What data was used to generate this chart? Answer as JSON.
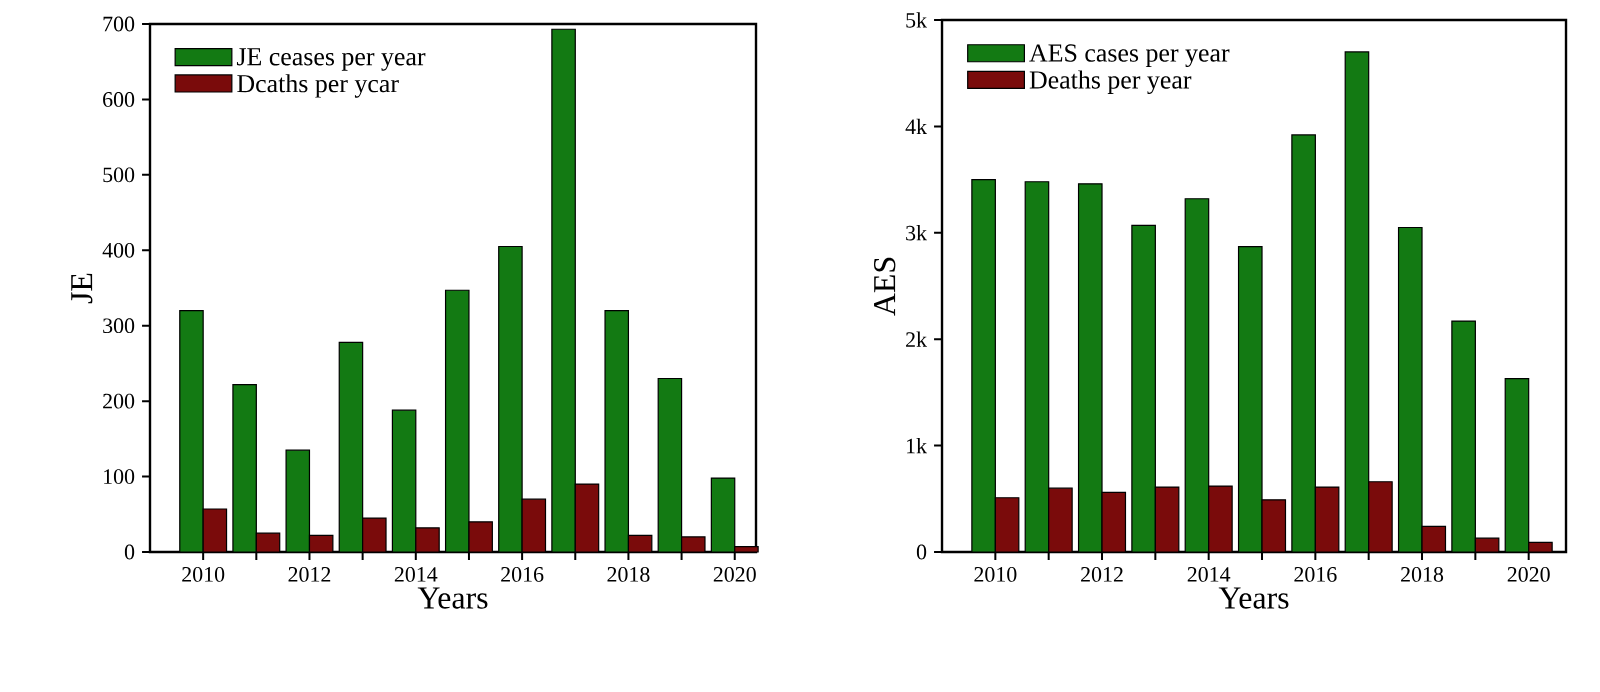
{
  "chart_data": [
    {
      "type": "bar",
      "xlabel": "Years",
      "ylabel": "JE",
      "legend": "top left",
      "x": [
        2010,
        2011,
        2012,
        2013,
        2014,
        2015,
        2016,
        2017,
        2018,
        2019,
        2020
      ],
      "series": [
        {
          "name": "JE ceases per year",
          "color": "#137a13",
          "values": [
            320,
            222,
            135,
            278,
            188,
            347,
            405,
            693,
            320,
            230,
            98
          ]
        },
        {
          "name": "Dcaths per ycar",
          "color": "#7a0b0b",
          "values": [
            57,
            25,
            22,
            45,
            32,
            40,
            70,
            90,
            22,
            20,
            7
          ]
        }
      ],
      "xlim": [
        2009,
        2020.4
      ],
      "ylim": [
        0,
        700
      ],
      "xticks": [
        2010,
        {
          "value": 2011,
          "label": null
        },
        2012,
        {
          "value": 2013,
          "label": null
        },
        2014,
        {
          "value": 2015,
          "label": null
        },
        2016,
        {
          "value": 2017,
          "label": null
        },
        2018,
        {
          "value": 2019,
          "label": null
        },
        2020
      ],
      "yticks": [
        0,
        100,
        200,
        300,
        400,
        500,
        600,
        700
      ]
    },
    {
      "type": "bar",
      "xlabel": "Years",
      "ylabel": "AES",
      "legend": "top left",
      "x": [
        2010,
        2011,
        2012,
        2013,
        2014,
        2015,
        2016,
        2017,
        2018,
        2019,
        2020
      ],
      "series": [
        {
          "name": "AES cases per year",
          "color": "#137a13",
          "values": [
            3500,
            3480,
            3460,
            3070,
            3320,
            2870,
            3920,
            4700,
            3050,
            2170,
            1630
          ]
        },
        {
          "name": "Deaths per year",
          "color": "#7a0b0b",
          "values": [
            510,
            600,
            560,
            610,
            620,
            490,
            610,
            660,
            240,
            130,
            90
          ]
        }
      ],
      "xlim": [
        2009,
        2020.7
      ],
      "ylim": [
        0,
        5000
      ],
      "xticks": [
        2010,
        {
          "value": 2011,
          "label": null
        },
        2012,
        {
          "value": 2013,
          "label": null
        },
        2014,
        {
          "value": 2015,
          "label": null
        },
        2016,
        {
          "value": 2017,
          "label": null
        },
        2018,
        {
          "value": 2019,
          "label": null
        },
        2020
      ],
      "yticks": [
        0,
        {
          "value": 1000,
          "label": "1k"
        },
        {
          "value": 2000,
          "label": "2k"
        },
        {
          "value": 3000,
          "label": "3k"
        },
        {
          "value": 4000,
          "label": "4k"
        },
        {
          "value": 5000,
          "label": "5k"
        }
      ]
    }
  ]
}
